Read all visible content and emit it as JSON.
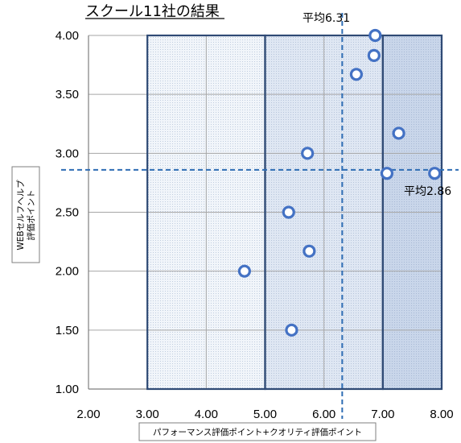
{
  "chart_data": {
    "type": "scatter",
    "title": "スクール11社の結果",
    "xlabel": "パフォーマンス評価ポイント+クオリティ評価ポイント",
    "ylabel_lines": [
      "WEBセルフヘルプ",
      "評価ポイント"
    ],
    "xlim": [
      2.0,
      8.0
    ],
    "ylim": [
      1.0,
      4.0
    ],
    "x_ticks": [
      "2.00",
      "3.00",
      "4.00",
      "5.00",
      "6.00",
      "7.00",
      "8.00"
    ],
    "y_ticks": [
      "1.00",
      "1.50",
      "2.00",
      "2.50",
      "3.00",
      "3.50",
      "4.00"
    ],
    "grid": true,
    "points": [
      {
        "x": 4.65,
        "y": 2.0
      },
      {
        "x": 5.45,
        "y": 1.5
      },
      {
        "x": 5.4,
        "y": 2.5
      },
      {
        "x": 5.75,
        "y": 2.17
      },
      {
        "x": 5.72,
        "y": 3.0
      },
      {
        "x": 6.55,
        "y": 3.67
      },
      {
        "x": 6.85,
        "y": 3.83
      },
      {
        "x": 6.87,
        "y": 4.0
      },
      {
        "x": 7.07,
        "y": 2.83
      },
      {
        "x": 7.27,
        "y": 3.17
      },
      {
        "x": 7.88,
        "y": 2.83
      }
    ],
    "mean_x": {
      "value": 6.31,
      "label": "平均6.31"
    },
    "mean_y": {
      "value": 2.86,
      "label": "平均2.86"
    },
    "zones": [
      {
        "x0": 3.0,
        "x1": 5.0,
        "fill": "#f1f5fa"
      },
      {
        "x0": 5.0,
        "x1": 7.0,
        "fill": "#dfe7f3"
      },
      {
        "x0": 7.0,
        "x1": 8.0,
        "fill": "#c9d6ea"
      }
    ],
    "colors": {
      "marker": "#4472c4",
      "mean_line": "#2e6db4",
      "zone_border": "#2f4a75",
      "grid": "#a6a6a6"
    }
  }
}
